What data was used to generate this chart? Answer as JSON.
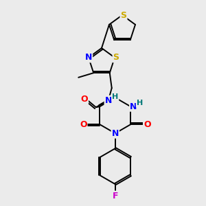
{
  "background_color": "#ebebeb",
  "bond_color": "#000000",
  "atom_colors": {
    "N": "#0000ff",
    "O": "#ff0000",
    "S": "#ccaa00",
    "F": "#cc00cc",
    "H": "#007777",
    "C": "#000000"
  },
  "figsize": [
    3.0,
    3.0
  ],
  "dpi": 100
}
